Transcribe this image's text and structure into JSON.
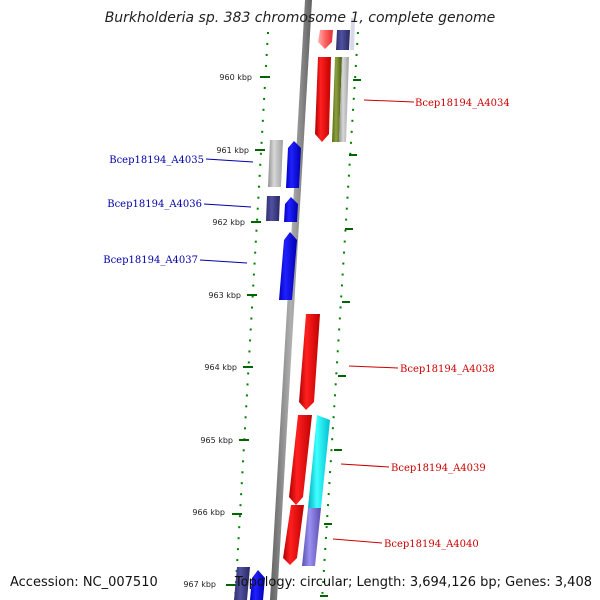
{
  "title": "Burkholderia sp. 383 chromosome 1, complete genome",
  "accession": "Accession: NC_007510",
  "topology": "Topology: circular; Length: 3,694,126 bp; Genes: 3,408",
  "colors": {
    "forward_gene": "#ff0000",
    "reverse_gene": "#0000ff",
    "backbone": "#808080",
    "tick": "#008000",
    "forward_label": "#cc0000",
    "reverse_label": "#0000aa"
  },
  "axis_ticks": [
    "960 kbp",
    "961 kbp",
    "962 kbp",
    "963 kbp",
    "964 kbp",
    "965 kbp",
    "966 kbp",
    "967 kbp"
  ],
  "gene_labels": [
    {
      "text": "Bcep18194_A4034",
      "strand": "forward"
    },
    {
      "text": "Bcep18194_A4035",
      "strand": "reverse"
    },
    {
      "text": "Bcep18194_A4036",
      "strand": "reverse"
    },
    {
      "text": "Bcep18194_A4037",
      "strand": "reverse"
    },
    {
      "text": "Bcep18194_A4038",
      "strand": "forward"
    },
    {
      "text": "Bcep18194_A4039",
      "strand": "forward"
    },
    {
      "text": "Bcep18194_A4040",
      "strand": "forward"
    }
  ]
}
